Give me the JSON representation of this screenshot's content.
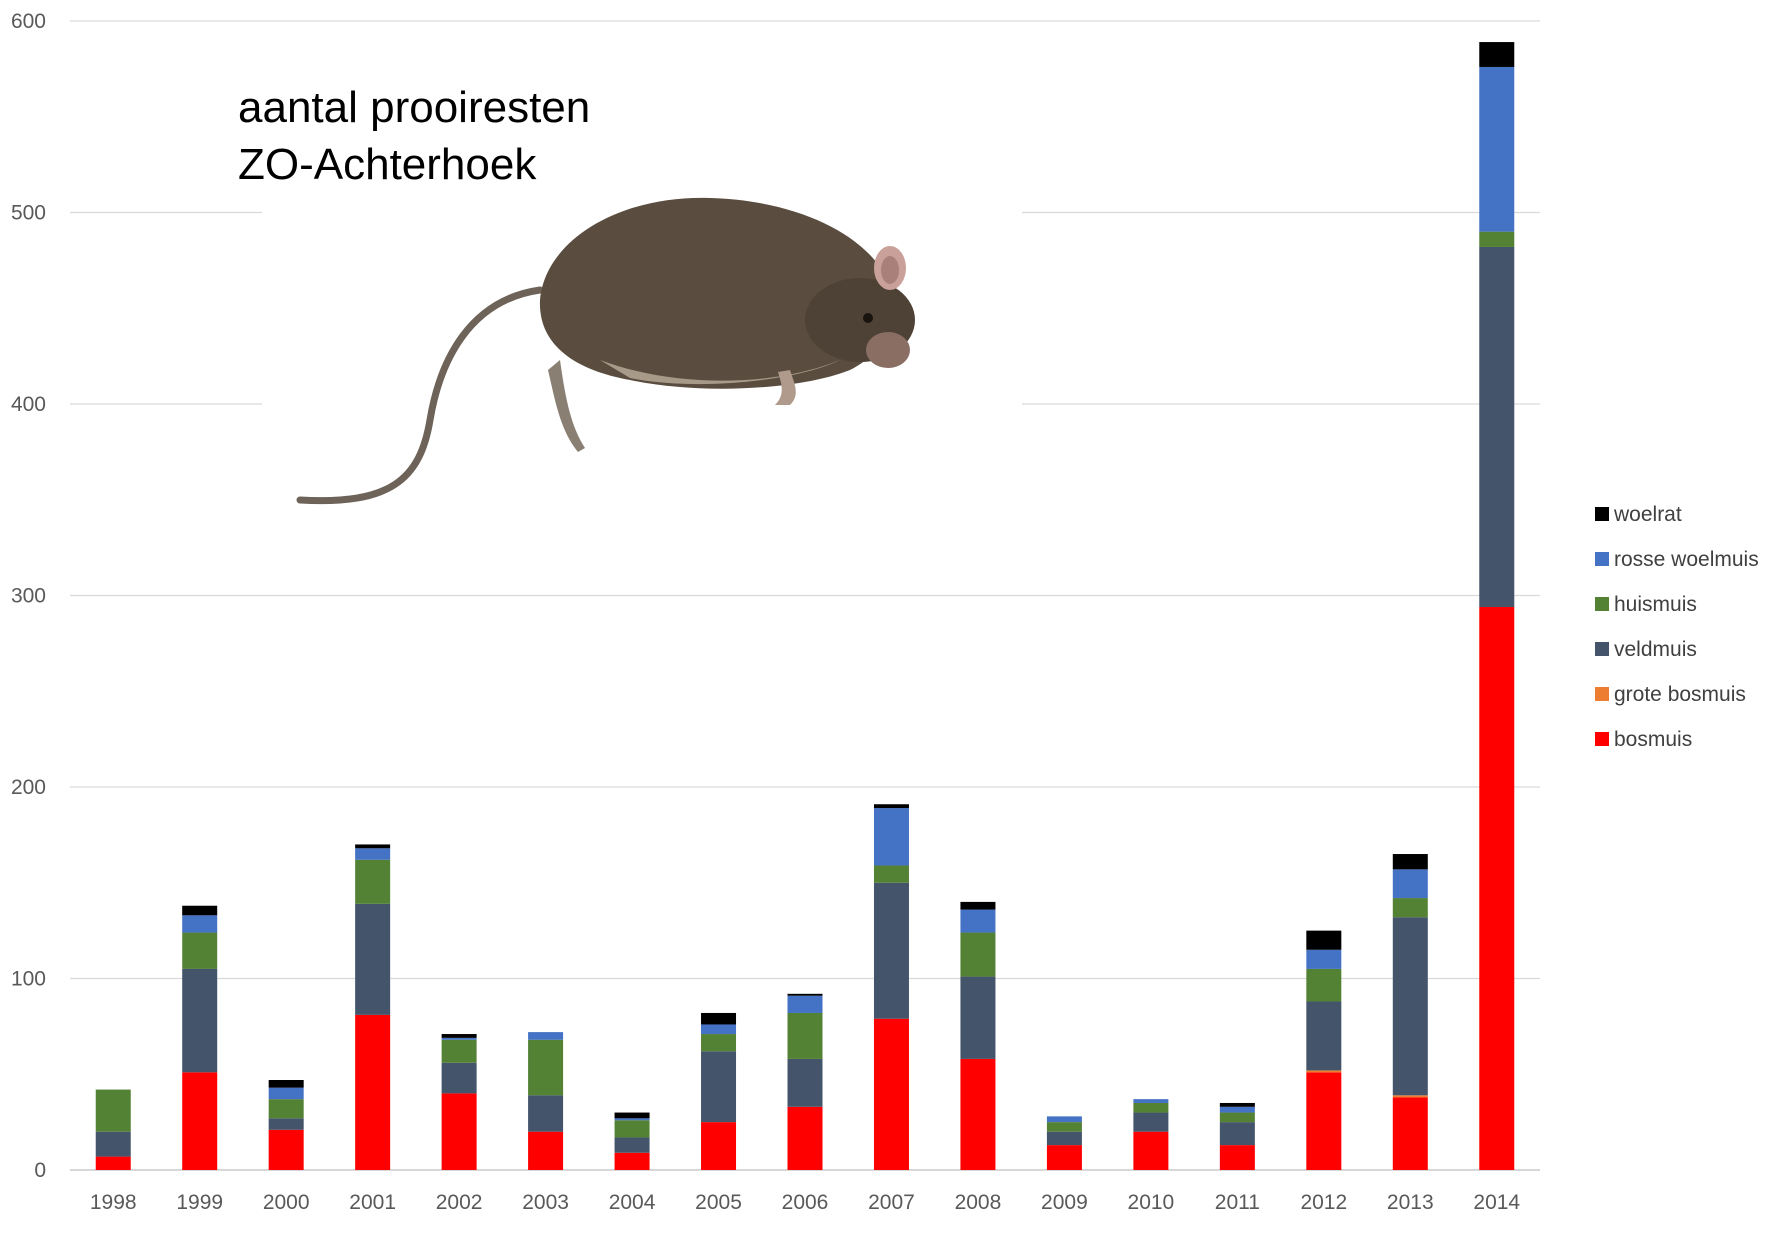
{
  "chart_data": {
    "type": "bar",
    "stacked": true,
    "title_lines": [
      "aantal prooiresten",
      "ZO-Achterhoek"
    ],
    "xlabel": "",
    "ylabel": "",
    "ylim": [
      0,
      600
    ],
    "yticks": [
      0,
      100,
      200,
      300,
      400,
      500,
      600
    ],
    "grid": true,
    "legend_position": "right",
    "legend_order": [
      "woelrat",
      "rosse woelmuis",
      "huismuis",
      "veldmuis",
      "grote bosmuis",
      "bosmuis"
    ],
    "categories": [
      "1998",
      "1999",
      "2000",
      "2001",
      "2002",
      "2003",
      "2004",
      "2005",
      "2006",
      "2007",
      "2008",
      "2009",
      "2010",
      "2011",
      "2012",
      "2013",
      "2014"
    ],
    "series": [
      {
        "name": "bosmuis",
        "color": "#ff0000",
        "values": [
          7,
          51,
          21,
          81,
          40,
          20,
          9,
          25,
          33,
          79,
          58,
          13,
          20,
          13,
          51,
          38,
          294
        ]
      },
      {
        "name": "grote bosmuis",
        "color": "#ed7d31",
        "values": [
          0,
          0,
          0,
          0,
          0,
          0,
          0,
          0,
          0,
          0,
          0,
          0,
          0,
          0,
          1,
          1,
          0
        ]
      },
      {
        "name": "veldmuis",
        "color": "#44546a",
        "values": [
          13,
          54,
          6,
          58,
          16,
          19,
          8,
          37,
          25,
          71,
          43,
          7,
          10,
          12,
          36,
          93,
          188
        ]
      },
      {
        "name": "huismuis",
        "color": "#548235",
        "values": [
          22,
          19,
          10,
          23,
          12,
          29,
          9,
          9,
          24,
          9,
          23,
          5,
          5,
          5,
          17,
          10,
          8
        ]
      },
      {
        "name": "rosse woelmuis",
        "color": "#4472c4",
        "values": [
          0,
          9,
          6,
          6,
          1,
          4,
          1,
          5,
          9,
          30,
          12,
          3,
          2,
          3,
          10,
          15,
          86
        ]
      },
      {
        "name": "woelrat",
        "color": "#000000",
        "values": [
          0,
          5,
          4,
          2,
          2,
          0,
          3,
          6,
          1,
          2,
          4,
          0,
          0,
          2,
          10,
          8,
          13
        ]
      }
    ]
  },
  "image": {
    "subject": "mouse-photo",
    "colors": {
      "body": "#5a4d40",
      "belly": "#a89a88",
      "tail": "#6e6358",
      "ear": "#c9a09a"
    }
  }
}
